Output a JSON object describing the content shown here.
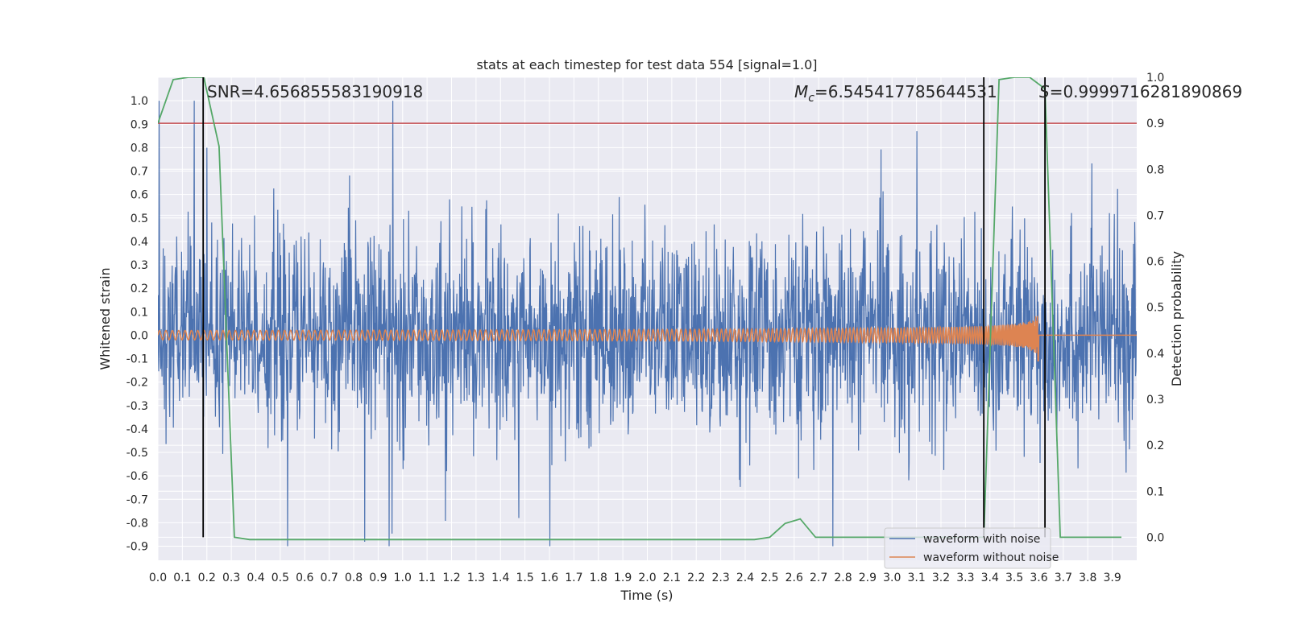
{
  "chart_data": {
    "type": "line",
    "title": "stats at each timestep for test data 554 [signal=1.0]",
    "xlabel": "Time (s)",
    "ylabel": "Whitened strain",
    "y2label": "Detection probability",
    "xlim": [
      0.0,
      4.0
    ],
    "ylim": [
      -0.96,
      1.1
    ],
    "y2lim": [
      -0.05,
      1.0
    ],
    "x_ticks": [
      "0.0",
      "0.1",
      "0.2",
      "0.3",
      "0.4",
      "0.5",
      "0.6",
      "0.7",
      "0.8",
      "0.9",
      "1.0",
      "1.1",
      "1.2",
      "1.3",
      "1.4",
      "1.5",
      "1.6",
      "1.7",
      "1.8",
      "1.9",
      "2.0",
      "2.1",
      "2.2",
      "2.3",
      "2.4",
      "2.5",
      "2.6",
      "2.7",
      "2.8",
      "2.9",
      "3.0",
      "3.1",
      "3.2",
      "3.3",
      "3.4",
      "3.5",
      "3.6",
      "3.7",
      "3.8",
      "3.9"
    ],
    "y_ticks": [
      "-0.9",
      "-0.8",
      "-0.7",
      "-0.6",
      "-0.5",
      "-0.4",
      "-0.3",
      "-0.2",
      "-0.1",
      "0.0",
      "0.1",
      "0.2",
      "0.3",
      "0.4",
      "0.5",
      "0.6",
      "0.7",
      "0.8",
      "0.9",
      "1.0"
    ],
    "y2_ticks": [
      "0.0",
      "0.1",
      "0.2",
      "0.3",
      "0.4",
      "0.5",
      "0.6",
      "0.7",
      "0.8",
      "0.9",
      "1.0"
    ],
    "annotations": {
      "snr": "SNR=4.656855583190918",
      "mc_symbol": "M",
      "mc_sub": "c",
      "mc_value": "=6.545417785644531",
      "s_symbol": "S",
      "s_value": "=0.9999716281890869"
    },
    "threshold": {
      "value": 0.9,
      "axis": "right",
      "color": "#c44e52"
    },
    "vlines": [
      0.185,
      3.375,
      3.625
    ],
    "series": [
      {
        "name": "waveform with noise",
        "color": "#4c72b0",
        "axis": "left",
        "kind": "noise"
      },
      {
        "name": "waveform without noise",
        "color": "#dd8452",
        "axis": "left",
        "kind": "chirp",
        "merger_time": 3.6,
        "final_amp": 0.13
      },
      {
        "name": "detection probability",
        "color": "#55a868",
        "axis": "right",
        "x": [
          0.0,
          0.0625,
          0.125,
          0.1875,
          0.25,
          0.3125,
          0.375,
          0.4375,
          0.5,
          1.0,
          1.5,
          2.0,
          2.4375,
          2.5,
          2.5625,
          2.625,
          2.6875,
          2.75,
          3.0,
          3.3125,
          3.375,
          3.4375,
          3.5,
          3.5625,
          3.625,
          3.6875,
          3.75,
          3.9375
        ],
        "values": [
          0.9,
          0.995,
          1.0,
          1.0,
          0.85,
          0.0,
          -0.005,
          -0.005,
          -0.005,
          -0.005,
          -0.005,
          -0.005,
          -0.005,
          0.0,
          0.03,
          0.04,
          0.0,
          0.0,
          0.0,
          0.0,
          0.0,
          0.995,
          1.0,
          1.0,
          0.975,
          0.0,
          0.0,
          0.0
        ]
      }
    ],
    "legend": {
      "position": "bottom-right",
      "entries": [
        "waveform with noise",
        "waveform without noise"
      ]
    }
  }
}
